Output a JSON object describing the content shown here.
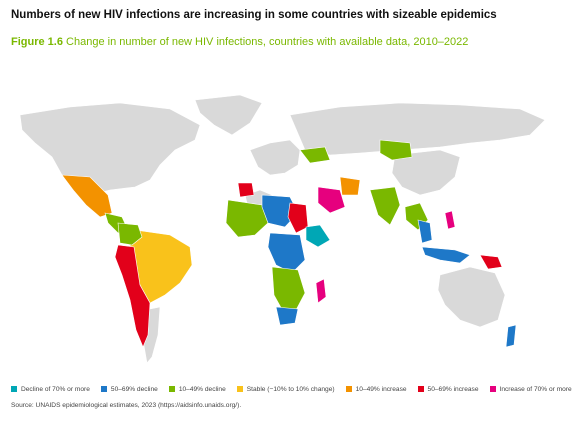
{
  "headline": "Numbers of new HIV infections are increasing in some countries with sizeable epidemics",
  "figure": {
    "label": "Figure 1.6",
    "caption": "Change in number of new HIV infections, countries with available data, 2010–2022"
  },
  "legend": [
    {
      "key": "decline70",
      "label": "Decline of 70% or more",
      "color": "#00a7b5"
    },
    {
      "key": "decline50",
      "label": "50–69% decline",
      "color": "#1e78c8"
    },
    {
      "key": "decline10",
      "label": "10–49% decline",
      "color": "#7ab800"
    },
    {
      "key": "stable",
      "label": "Stable (−10% to 10% change)",
      "color": "#f9c21b"
    },
    {
      "key": "increase10",
      "label": "10–49% increase",
      "color": "#f39200"
    },
    {
      "key": "increase50",
      "label": "50–69% increase",
      "color": "#e2001a"
    },
    {
      "key": "increase70",
      "label": "Increase of 70% or more",
      "color": "#e6007e"
    }
  ],
  "no_data_color": "#d9d9d9",
  "source": "Source: UNAIDS epidemiological estimates, 2023 (https://aidsinfo.unaids.org/)."
}
